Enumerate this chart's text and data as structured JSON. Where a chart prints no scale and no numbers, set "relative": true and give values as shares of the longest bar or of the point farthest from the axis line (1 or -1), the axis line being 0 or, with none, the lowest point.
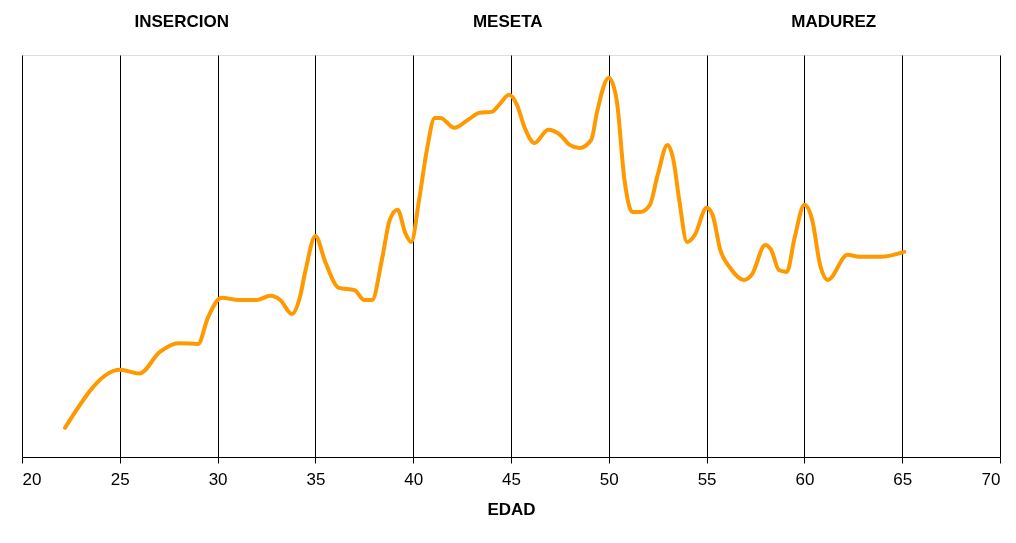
{
  "chart_data": {
    "type": "line",
    "relative": true,
    "xlabel": "EDAD",
    "annotations": [
      "INSERCION",
      "MESETA",
      "MADUREZ"
    ],
    "xlim": [
      20,
      70
    ],
    "xticks": [
      20,
      25,
      30,
      35,
      40,
      45,
      50,
      55,
      60,
      65,
      70
    ],
    "grid": "x",
    "marker": "none",
    "line_style": "solid",
    "x": [
      22.2,
      25.0,
      26.0,
      27.05,
      28.0,
      29.0,
      29.5,
      30.2,
      31.1,
      32.0,
      32.7,
      33.2,
      33.8,
      34.2,
      34.5,
      35.0,
      35.5,
      36.2,
      37.0,
      37.5,
      37.9,
      38.4,
      38.8,
      39.2,
      39.6,
      39.9,
      40.3,
      40.7,
      41.1,
      41.4,
      42.1,
      42.8,
      43.4,
      44.0,
      44.4,
      44.9,
      45.3,
      45.7,
      46.2,
      46.9,
      47.5,
      48.0,
      48.5,
      49.1,
      49.4,
      50.0,
      50.4,
      50.8,
      51.2,
      51.6,
      52.1,
      52.5,
      53.0,
      53.3,
      53.6,
      54.0,
      54.4,
      55.0,
      55.3,
      55.7,
      56.2,
      56.9,
      57.3,
      58.0,
      58.3,
      58.7,
      59.1,
      59.5,
      60.0,
      60.4,
      60.8,
      61.2,
      62.2,
      62.8,
      63.9,
      65.1
    ],
    "series": [
      {
        "color": "#ff9900",
        "values": [
          0.077,
          0.23,
          0.22,
          0.277,
          0.3,
          0.298,
          0.367,
          0.42,
          0.414,
          0.414,
          0.425,
          0.414,
          0.377,
          0.42,
          0.493,
          0.583,
          0.515,
          0.446,
          0.44,
          0.414,
          0.414,
          0.52,
          0.625,
          0.652,
          0.59,
          0.567,
          0.678,
          0.81,
          0.894,
          0.894,
          0.868,
          0.889,
          0.908,
          0.91,
          0.929,
          0.955,
          0.929,
          0.868,
          0.828,
          0.863,
          0.85,
          0.823,
          0.815,
          0.836,
          0.91,
          1.0,
          0.942,
          0.731,
          0.646,
          0.646,
          0.665,
          0.744,
          0.823,
          0.784,
          0.678,
          0.567,
          0.586,
          0.657,
          0.639,
          0.546,
          0.499,
          0.467,
          0.48,
          0.559,
          0.546,
          0.493,
          0.488,
          0.578,
          0.665,
          0.625,
          0.507,
          0.467,
          0.533,
          0.528,
          0.528,
          0.541
        ]
      }
    ]
  }
}
